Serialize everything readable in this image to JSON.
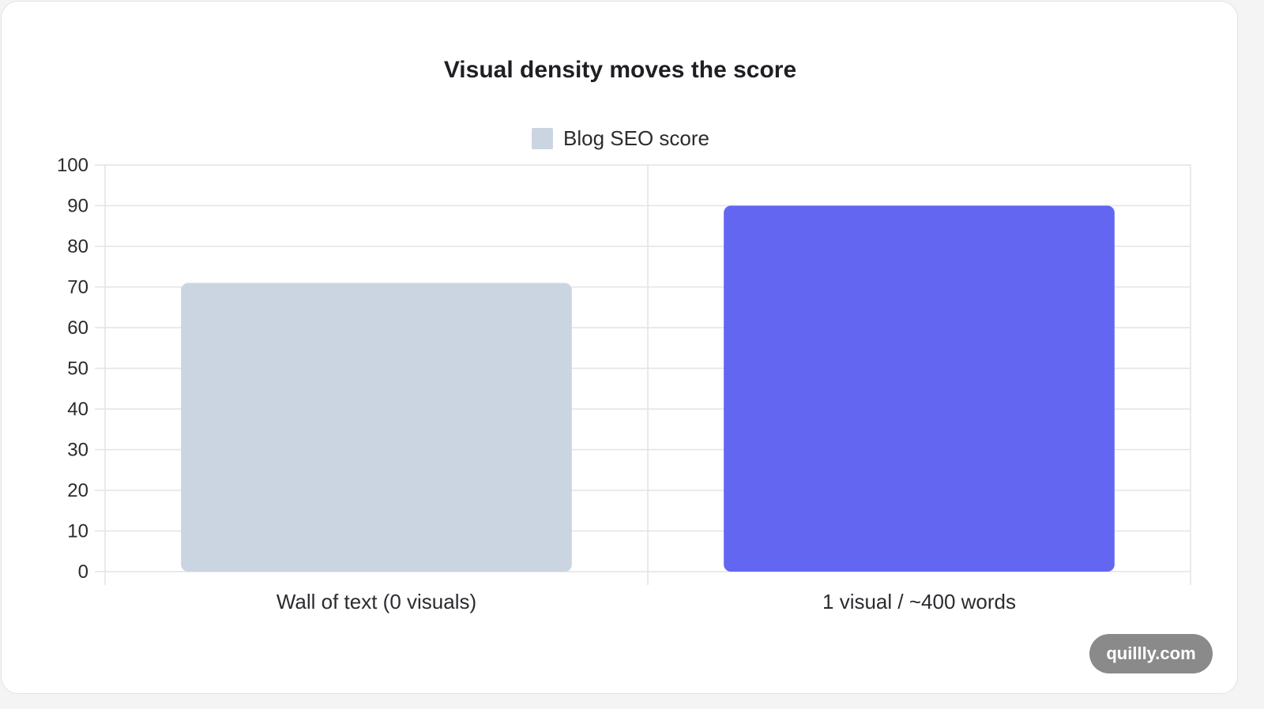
{
  "chart_data": {
    "type": "bar",
    "title": "Visual density moves the score",
    "categories": [
      "Wall of text (0 visuals)",
      "1 visual / ~400 words"
    ],
    "series": [
      {
        "name": "Blog SEO score",
        "values": [
          71,
          90
        ]
      }
    ],
    "bar_colors": [
      "#cbd5e1",
      "#6366f1"
    ],
    "legend_color": "#cbd5e1",
    "legend_position": "top-center",
    "ylim": [
      0,
      100
    ],
    "yticks": [
      "0",
      "10",
      "20",
      "30",
      "40",
      "50",
      "60",
      "70",
      "80",
      "90",
      "100"
    ],
    "grid": true,
    "xlabel": "",
    "ylabel": ""
  },
  "watermark": {
    "text": "quillly.com"
  }
}
